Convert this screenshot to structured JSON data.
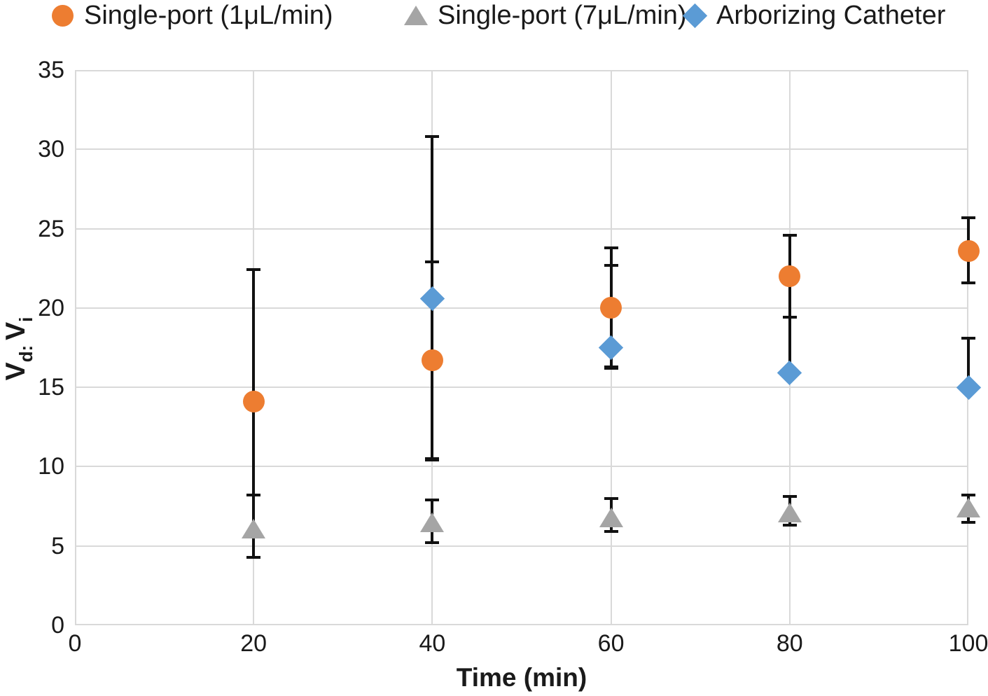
{
  "legend": {
    "items": [
      {
        "label": "Single-port (1μL/min)",
        "marker": "circle",
        "color": "#ED7D31"
      },
      {
        "label": "Single-port (7μL/min)",
        "marker": "triangle",
        "color": "#A5A5A5"
      },
      {
        "label": "Arborizing Catheter",
        "marker": "diamond",
        "color": "#5B9BD5"
      }
    ]
  },
  "axes": {
    "xlabel": "Time (min)",
    "ylabel_v1": "V",
    "ylabel_s1": "d:",
    "ylabel_v2": "V",
    "ylabel_s2": "i"
  },
  "colors": {
    "grid": "#d9d9d9",
    "error_bar": "#111111",
    "text": "#1a1a1a",
    "orange": "#ED7D31",
    "gray": "#A5A5A5",
    "blue": "#5B9BD5"
  },
  "chart_data": {
    "type": "scatter",
    "title": "",
    "xlabel": "Time (min)",
    "ylabel": "Vd:Vi",
    "xlim": [
      0,
      100
    ],
    "ylim": [
      0,
      35
    ],
    "xticks": [
      0,
      20,
      40,
      60,
      80,
      100
    ],
    "yticks": [
      0,
      5,
      10,
      15,
      20,
      25,
      30,
      35
    ],
    "grid": true,
    "legend_position": "top",
    "series": [
      {
        "name": "Single-port (1μL/min)",
        "marker": "circle",
        "color": "#ED7D31",
        "points": [
          {
            "x": 20,
            "y": 14.1,
            "err_hi": 22.4,
            "err_lo": 5.8
          },
          {
            "x": 40,
            "y": 16.7,
            "err_hi": 22.9,
            "err_lo": 10.5
          },
          {
            "x": 60,
            "y": 20.0,
            "err_hi": 23.8,
            "err_lo": 16.2
          },
          {
            "x": 80,
            "y": 22.0,
            "err_hi": 24.6,
            "err_lo": 19.4
          },
          {
            "x": 100,
            "y": 23.6,
            "err_hi": 25.7,
            "err_lo": 21.6
          }
        ]
      },
      {
        "name": "Single-port (7μL/min)",
        "marker": "triangle",
        "color": "#A5A5A5",
        "points": [
          {
            "x": 20,
            "y": 6.1,
            "err_hi": 8.2,
            "err_lo": 4.3
          },
          {
            "x": 40,
            "y": 6.5,
            "err_hi": 7.9,
            "err_lo": 5.2
          },
          {
            "x": 60,
            "y": 6.8,
            "err_hi": 8.0,
            "err_lo": 5.9
          },
          {
            "x": 80,
            "y": 7.1,
            "err_hi": 8.1,
            "err_lo": 6.3
          },
          {
            "x": 100,
            "y": 7.4,
            "err_hi": 8.2,
            "err_lo": 6.5
          }
        ]
      },
      {
        "name": "Arborizing Catheter",
        "marker": "diamond",
        "color": "#5B9BD5",
        "points": [
          {
            "x": 40,
            "y": 20.6,
            "err_hi": 30.8,
            "err_lo": 10.4
          },
          {
            "x": 60,
            "y": 17.5,
            "err_hi": 22.7,
            "err_lo": 16.3
          },
          {
            "x": 80,
            "y": 15.9,
            "err_hi": 19.4,
            "err_lo": null
          },
          {
            "x": 100,
            "y": 15.0,
            "err_hi": 18.1,
            "err_lo": null
          }
        ]
      }
    ]
  }
}
